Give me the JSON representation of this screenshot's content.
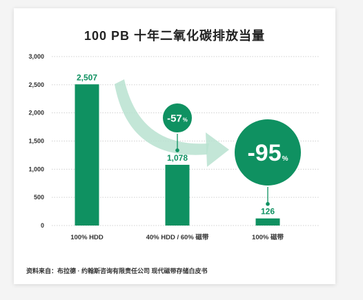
{
  "colors": {
    "bar": "#0f9161",
    "value_label": "#0f9161",
    "grid": "#cfcfcf",
    "badge": "#0f9161",
    "badge_text": "#ffffff",
    "arrow": "#b9e2d0"
  },
  "chart_data": {
    "type": "bar",
    "title": "100 PB 十年二氧化碳排放当量",
    "categories": [
      "100% HDD",
      "40% HDD / 60% 磁带",
      "100% 磁带"
    ],
    "values": [
      2507,
      1078,
      126
    ],
    "value_labels": [
      "2,507",
      "1,078",
      "126"
    ],
    "ylim": [
      0,
      3000
    ],
    "yticks": [
      0,
      500,
      1000,
      1500,
      2000,
      2500,
      3000
    ],
    "ytick_labels": [
      "0",
      "500",
      "1,000",
      "1,500",
      "2,000",
      "2,500",
      "3,000"
    ],
    "grid": true,
    "annotations": [
      {
        "category": "40% HDD / 60% 磁带",
        "number": "-57",
        "suffix": "%"
      },
      {
        "category": "100% 磁带",
        "number": "-95",
        "suffix": "%"
      }
    ],
    "source": "资料来自：布拉德 · 约翰斯咨询有限责任公司 现代磁带存储白皮书"
  }
}
